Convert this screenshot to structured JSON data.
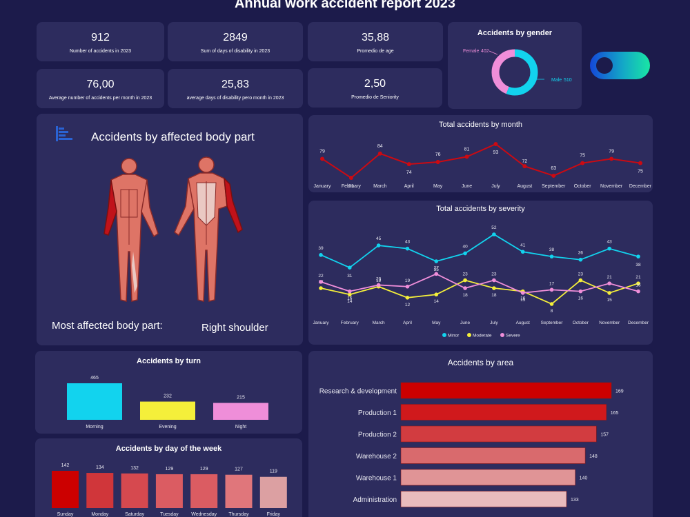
{
  "title": "Annual work accident report 2023",
  "kpis": [
    {
      "value": "912",
      "label": "Number of accidents in 2023"
    },
    {
      "value": "2849",
      "label": "Sum of days of disability in 2023"
    },
    {
      "value": "35,88",
      "label": "Promedio de age"
    },
    {
      "value": "76,00",
      "label": "Average number of accidents per month in 2023"
    },
    {
      "value": "25,83",
      "label": "average days of disability pero month in 2023"
    },
    {
      "value": "2,50",
      "label": "Promedio de Seniority"
    }
  ],
  "body_part": {
    "title": "Accidents by affected body part",
    "most_label": "Most affected body part:",
    "most_value": "Right shoulder"
  },
  "colors": {
    "bg": "#1c1b4b",
    "card": "#2d2c5e",
    "minor": "#12d3ee",
    "moderate": "#f4ef3a",
    "severe": "#ef8ed9",
    "month_line": "#cc0a12"
  },
  "chart_data": [
    {
      "type": "pie",
      "title": "Accidents by gender",
      "categories": [
        "Female",
        "Male"
      ],
      "values": [
        402,
        510
      ],
      "colors": [
        "#ef8ed9",
        "#12d3ee"
      ]
    },
    {
      "type": "line",
      "title": "Total accidents by month",
      "categories": [
        "January",
        "February",
        "March",
        "April",
        "May",
        "June",
        "July",
        "August",
        "September",
        "October",
        "November",
        "December"
      ],
      "values": [
        79,
        61,
        84,
        74,
        76,
        81,
        93,
        72,
        63,
        75,
        79,
        75
      ]
    },
    {
      "type": "line",
      "title": "Total accidents by severity",
      "categories": [
        "January",
        "February",
        "March",
        "April",
        "May",
        "June",
        "July",
        "August",
        "September",
        "October",
        "November",
        "December"
      ],
      "series": [
        {
          "name": "Minor",
          "values": [
            39,
            31,
            45,
            43,
            35,
            40,
            52,
            41,
            38,
            36,
            43,
            38
          ]
        },
        {
          "name": "Moderate",
          "values": [
            18,
            14,
            19,
            12,
            14,
            23,
            18,
            16,
            8,
            23,
            15,
            21
          ]
        },
        {
          "name": "Severe",
          "values": [
            22,
            16,
            20,
            19,
            27,
            18,
            23,
            15,
            17,
            16,
            21,
            16
          ]
        }
      ],
      "legend": "bottom"
    },
    {
      "type": "bar",
      "title": "Accidents by turn",
      "categories": [
        "Morning",
        "Evening",
        "Night"
      ],
      "values": [
        465,
        232,
        215
      ],
      "colors": [
        "#12d3ee",
        "#f4ef3a",
        "#ef8ed9"
      ]
    },
    {
      "type": "bar",
      "title": "Accidents by day of the week",
      "categories": [
        "Sunday",
        "Monday",
        "Saturday",
        "Tuesday",
        "Wednesday",
        "Thursday",
        "Friday"
      ],
      "values": [
        142,
        134,
        132,
        129,
        129,
        127,
        119
      ],
      "colors": [
        "#cc0000",
        "#d0363a",
        "#d6494f",
        "#db5c62",
        "#db5c62",
        "#e0767b",
        "#dca0a2"
      ]
    },
    {
      "type": "bar",
      "orientation": "horizontal",
      "title": "Accidents by area",
      "categories": [
        "Research & development",
        "Production 1",
        "Production 2",
        "Warehouse 2",
        "Warehouse 1",
        "Administration"
      ],
      "values": [
        169,
        165,
        157,
        148,
        140,
        133
      ],
      "colors": [
        "#cc0000",
        "#d0191c",
        "#d23c40",
        "#d96a6d",
        "#e09496",
        "#e9bcbd"
      ]
    }
  ]
}
